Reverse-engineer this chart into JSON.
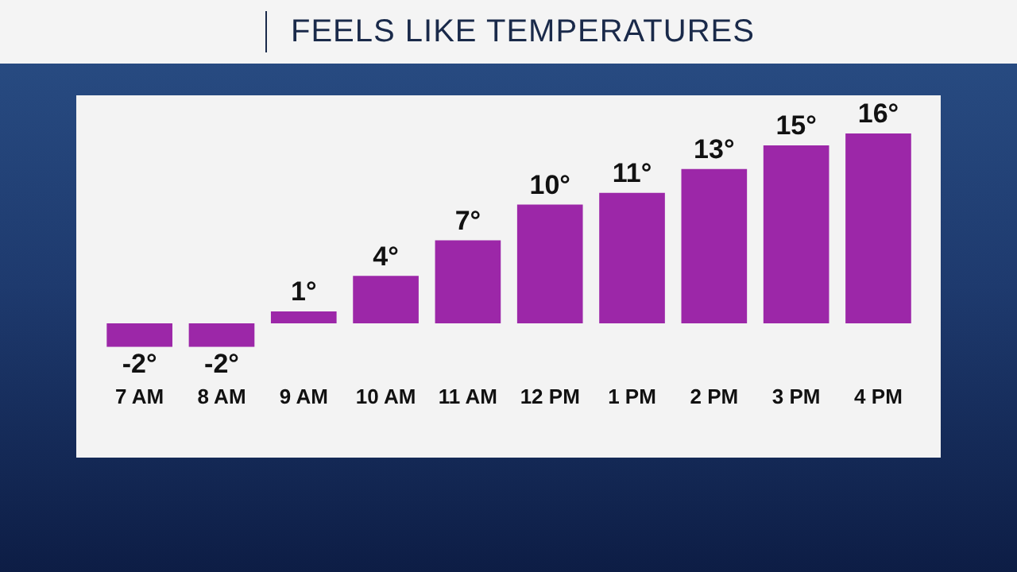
{
  "chart_data": {
    "type": "bar",
    "title": "FEELS LIKE TEMPERATURES",
    "categories": [
      "7 AM",
      "8 AM",
      "9 AM",
      "10 AM",
      "11 AM",
      "12 PM",
      "1 PM",
      "2 PM",
      "3 PM",
      "4 PM"
    ],
    "values": [
      -2,
      -2,
      1,
      4,
      7,
      10,
      11,
      13,
      15,
      16
    ],
    "value_labels": [
      "-2°",
      "-2°",
      "1°",
      "4°",
      "7°",
      "10°",
      "11°",
      "13°",
      "15°",
      "16°"
    ],
    "color": "#9c27a8",
    "tick_labels": "x",
    "grid": false,
    "legend": false
  }
}
